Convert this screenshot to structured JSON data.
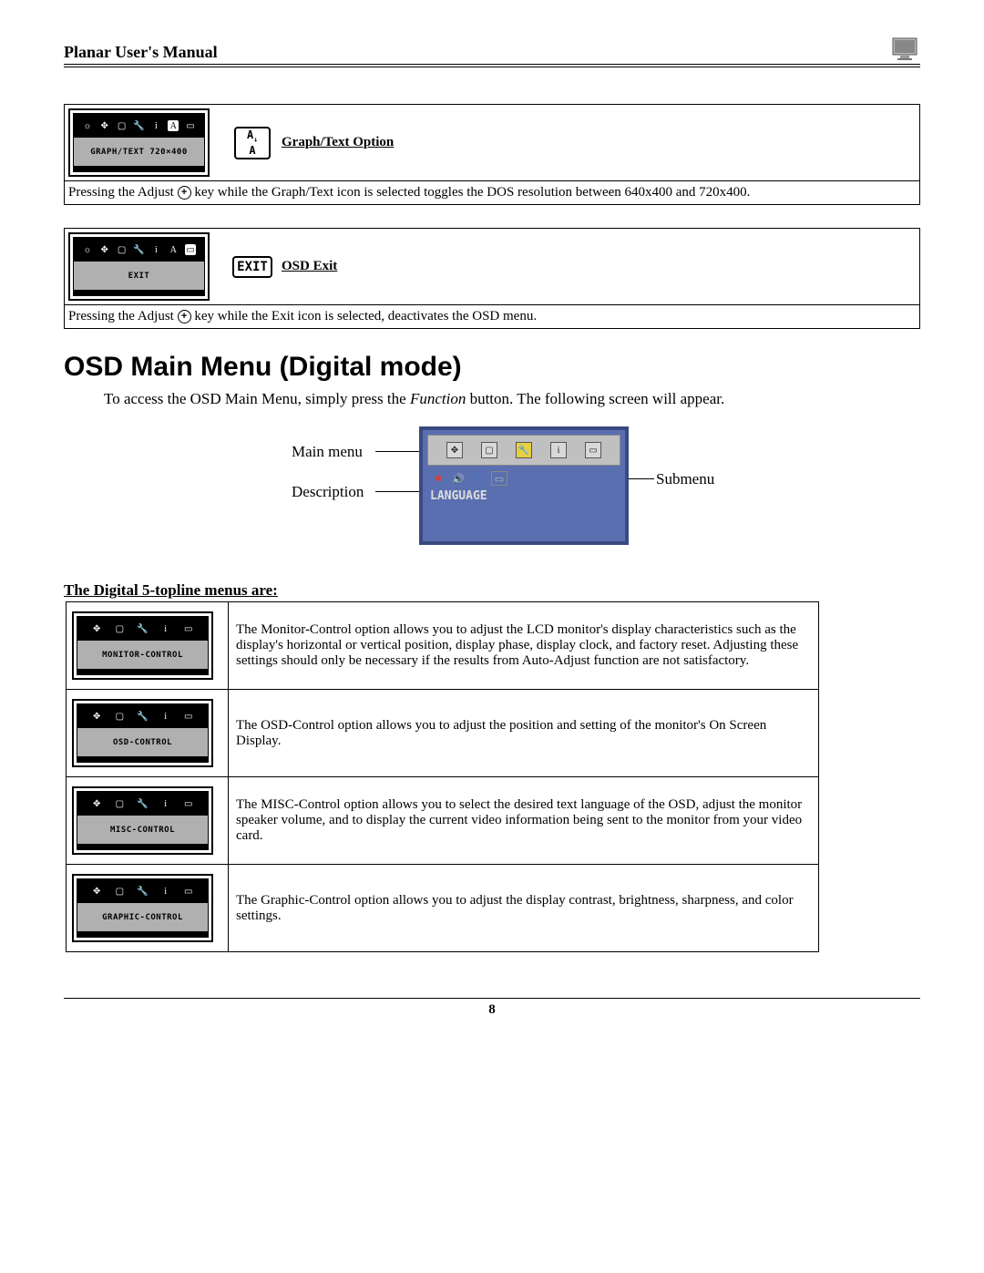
{
  "header": {
    "title": "Planar User's Manual"
  },
  "box1": {
    "panel_label": "GRAPH/TEXT  720×400",
    "title": "Graph/Text Option",
    "desc_pre": "Pressing the Adjust ",
    "desc_post": " key while the Graph/Text icon is selected toggles the DOS resolution between 640x400 and 720x400."
  },
  "box2": {
    "panel_label": "EXIT",
    "icon_text": "EXIT",
    "title": "OSD Exit",
    "desc_pre": "Pressing the Adjust ",
    "desc_post": " key while the Exit icon is selected, deactivates the OSD menu."
  },
  "section_heading": "OSD Main Menu (Digital mode)",
  "intro_a": "To access the OSD Main Menu, simply press the ",
  "intro_i": "Function",
  "intro_b": " button.  The following screen will appear.",
  "diagram": {
    "main_menu": "Main menu",
    "description": "Description",
    "submenu": "Submenu",
    "language": "LANGUAGE"
  },
  "subheading": "The Digital 5-topline menus are:",
  "menus": [
    {
      "label": "MONITOR-CONTROL",
      "desc": "The Monitor-Control option allows you to adjust the LCD monitor's display characteristics such as the display's horizontal or vertical position, display phase, display clock, and factory reset.  Adjusting these settings should only be necessary if the results from Auto-Adjust function are not satisfactory."
    },
    {
      "label": "OSD-CONTROL",
      "desc": "The OSD-Control option allows you to adjust the position and setting of the monitor's On Screen Display."
    },
    {
      "label": "MISC-CONTROL",
      "desc": "The MISC-Control option allows you to select the desired text language of the OSD, adjust the monitor speaker volume, and to display the current video information being sent to the monitor from your video card."
    },
    {
      "label": "GRAPHIC-CONTROL",
      "desc": "The Graphic-Control option allows you to adjust the display contrast, brightness, sharpness, and color settings."
    }
  ],
  "page_number": "8"
}
